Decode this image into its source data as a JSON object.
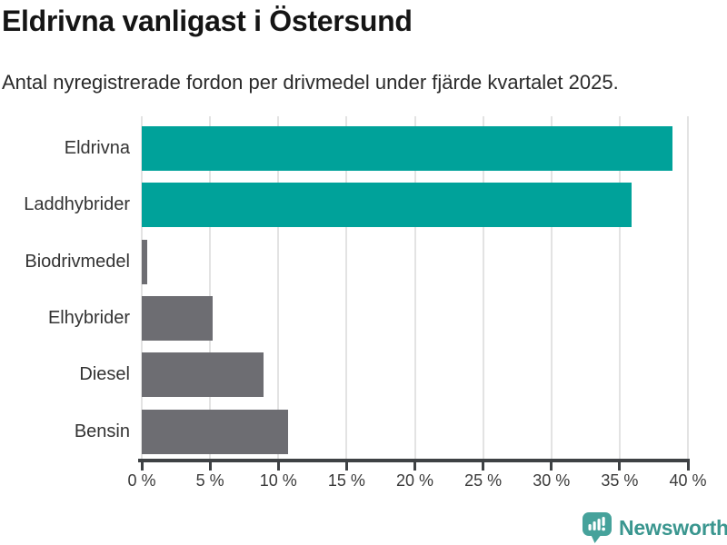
{
  "title": "Eldrivna vanligast i Östersund",
  "subtitle": "Antal nyregistrerade fordon per drivmedel under fjärde kvartalet 2025.",
  "chart_data": {
    "type": "bar",
    "orientation": "horizontal",
    "title": "Eldrivna vanligast i Östersund",
    "subtitle": "Antal nyregistrerade fordon per drivmedel under fjärde kvartalet 2025.",
    "categories": [
      "Eldrivna",
      "Laddhybrider",
      "Biodrivmedel",
      "Elhybrider",
      "Diesel",
      "Bensin"
    ],
    "values": [
      38.9,
      35.9,
      0.4,
      5.2,
      8.9,
      10.7
    ],
    "unit": "%",
    "bar_colors": [
      "#00a29a",
      "#00a29a",
      "#6d6d72",
      "#6d6d72",
      "#6d6d72",
      "#6d6d72"
    ],
    "xlim": [
      0,
      40
    ],
    "xticks": [
      0,
      5,
      10,
      15,
      20,
      25,
      30,
      35,
      40
    ],
    "xtick_labels": [
      "0 %",
      "5 %",
      "10 %",
      "15 %",
      "20 %",
      "25 %",
      "30 %",
      "35 %",
      "40 %"
    ],
    "grid": "vertical",
    "legend": "none"
  },
  "colors": {
    "accent_teal": "#00a29a",
    "neutral_gray": "#6d6d72",
    "gridline": "#e3e3e3",
    "axis": "#3e4144",
    "brand_teal": "#3a968f"
  },
  "footer": {
    "brand": "Newsworthy",
    "logo_icon": "bar-chart-speech-bubble"
  }
}
